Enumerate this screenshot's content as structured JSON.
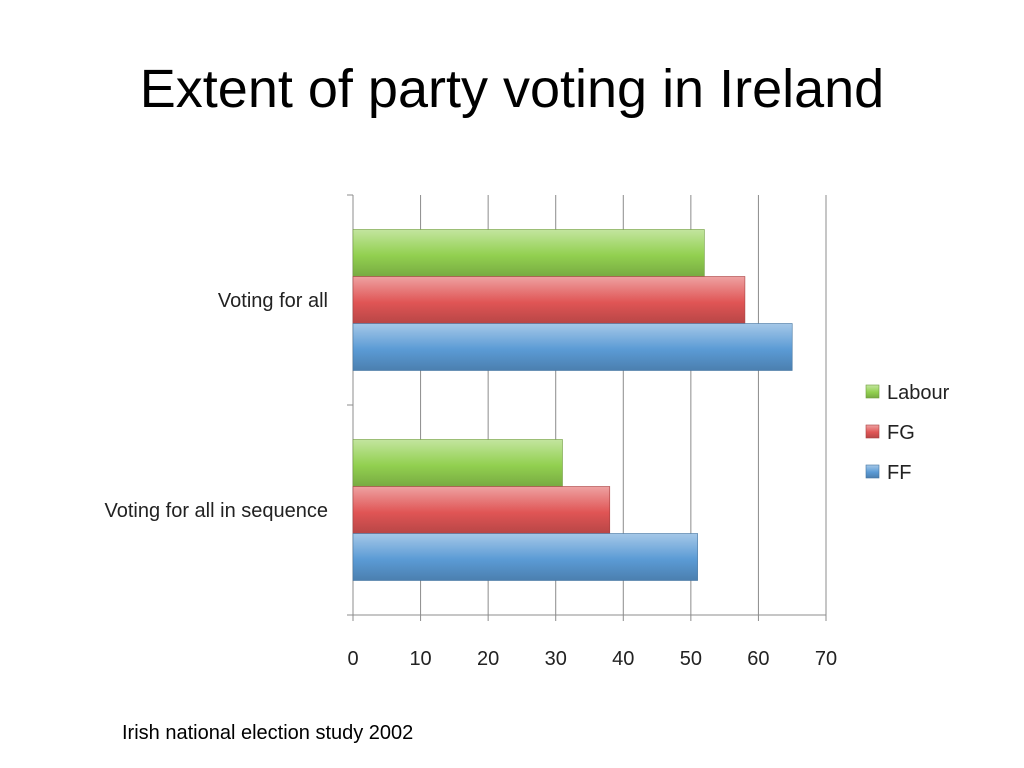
{
  "slide": {
    "title": "Extent of party voting in Ireland",
    "source_note": "Irish national election study 2002"
  },
  "chart_data": {
    "type": "bar",
    "orientation": "horizontal",
    "categories": [
      "Voting for all",
      "Voting for all in sequence"
    ],
    "series": [
      {
        "name": "Labour",
        "values": [
          52,
          31
        ],
        "color": "#92d050"
      },
      {
        "name": "FG",
        "values": [
          58,
          38
        ],
        "color": "#e05555"
      },
      {
        "name": "FF",
        "values": [
          65,
          51
        ],
        "color": "#5b9bd5"
      }
    ],
    "xlim": [
      0,
      70
    ],
    "xticks": [
      0,
      10,
      20,
      30,
      40,
      50,
      60,
      70
    ],
    "grid": "vertical",
    "legend_position": "right"
  }
}
